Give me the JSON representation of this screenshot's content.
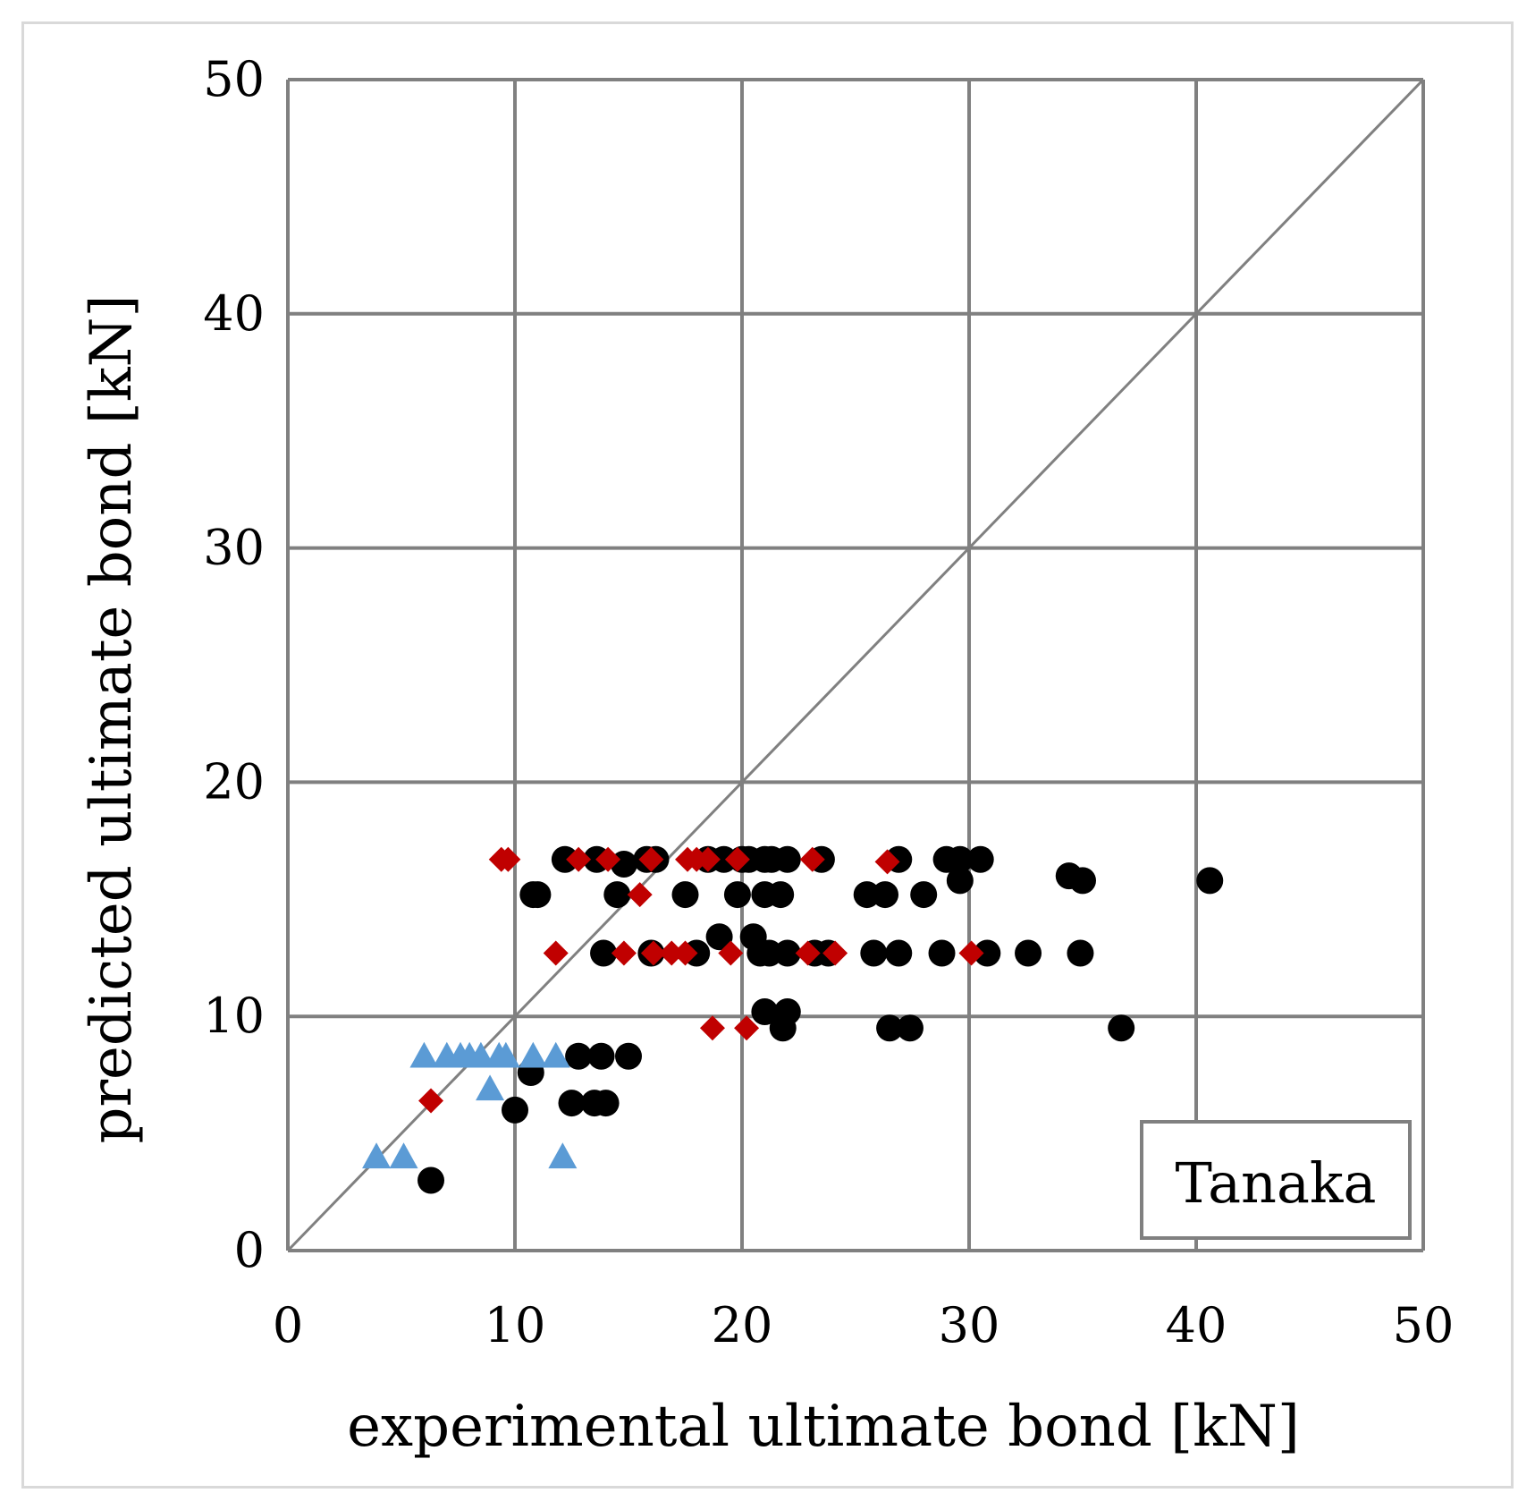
{
  "chart_data": {
    "type": "scatter",
    "title": "",
    "xlabel": "experimental ultimate bond [kN]",
    "ylabel": "predicted ultimate bond [kN]",
    "xlim": [
      0,
      50
    ],
    "ylim": [
      0,
      50
    ],
    "xticks": [
      0,
      10,
      20,
      30,
      40,
      50
    ],
    "yticks": [
      0,
      10,
      20,
      30,
      40,
      50
    ],
    "grid": true,
    "annotation": "Tanaka",
    "reference_line": {
      "name": "y = x",
      "from": [
        0,
        0
      ],
      "to": [
        50,
        50
      ],
      "color": "#808080"
    },
    "series": [
      {
        "name": "circles",
        "marker": "circle",
        "color": "#000000",
        "points": [
          [
            6.3,
            3.0
          ],
          [
            10.0,
            6.0
          ],
          [
            10.7,
            7.6
          ],
          [
            12.5,
            6.3
          ],
          [
            13.5,
            6.3
          ],
          [
            14.0,
            6.3
          ],
          [
            12.8,
            8.3
          ],
          [
            13.8,
            8.3
          ],
          [
            15.0,
            8.3
          ],
          [
            11.0,
            15.2
          ],
          [
            10.8,
            15.2
          ],
          [
            12.2,
            16.7
          ],
          [
            13.6,
            16.7
          ],
          [
            14.5,
            15.2
          ],
          [
            14.8,
            16.5
          ],
          [
            15.8,
            16.7
          ],
          [
            16.2,
            16.7
          ],
          [
            17.5,
            15.2
          ],
          [
            18.5,
            16.7
          ],
          [
            19.2,
            16.7
          ],
          [
            20.0,
            16.7
          ],
          [
            20.3,
            16.7
          ],
          [
            21.0,
            16.7
          ],
          [
            21.3,
            16.7
          ],
          [
            22.0,
            16.7
          ],
          [
            23.5,
            16.7
          ],
          [
            19.8,
            15.2
          ],
          [
            21.0,
            15.2
          ],
          [
            21.7,
            15.2
          ],
          [
            13.9,
            12.7
          ],
          [
            16.0,
            12.7
          ],
          [
            18.0,
            12.7
          ],
          [
            19.0,
            13.4
          ],
          [
            20.5,
            13.4
          ],
          [
            20.8,
            12.7
          ],
          [
            21.2,
            12.7
          ],
          [
            22.0,
            12.7
          ],
          [
            23.2,
            12.7
          ],
          [
            23.8,
            12.7
          ],
          [
            21.0,
            10.2
          ],
          [
            22.0,
            10.2
          ],
          [
            21.8,
            9.5
          ],
          [
            25.5,
            15.2
          ],
          [
            26.3,
            15.2
          ],
          [
            26.9,
            16.7
          ],
          [
            28.0,
            15.2
          ],
          [
            29.0,
            16.7
          ],
          [
            29.6,
            16.7
          ],
          [
            29.6,
            15.8
          ],
          [
            30.5,
            16.7
          ],
          [
            25.8,
            12.7
          ],
          [
            26.9,
            12.7
          ],
          [
            28.8,
            12.7
          ],
          [
            30.8,
            12.7
          ],
          [
            32.6,
            12.7
          ],
          [
            26.5,
            9.5
          ],
          [
            27.4,
            9.5
          ],
          [
            34.4,
            16.0
          ],
          [
            35.0,
            15.8
          ],
          [
            34.9,
            12.7
          ],
          [
            36.7,
            9.5
          ],
          [
            40.6,
            15.8
          ]
        ]
      },
      {
        "name": "diamonds",
        "marker": "diamond",
        "color": "#c00000",
        "points": [
          [
            6.3,
            6.4
          ],
          [
            9.4,
            16.7
          ],
          [
            9.7,
            16.7
          ],
          [
            12.8,
            16.7
          ],
          [
            14.1,
            16.7
          ],
          [
            15.5,
            15.2
          ],
          [
            16.0,
            16.7
          ],
          [
            17.6,
            16.7
          ],
          [
            18.0,
            16.7
          ],
          [
            18.5,
            16.7
          ],
          [
            19.8,
            16.7
          ],
          [
            23.1,
            16.7
          ],
          [
            26.4,
            16.6
          ],
          [
            11.8,
            12.7
          ],
          [
            14.8,
            12.7
          ],
          [
            16.1,
            12.7
          ],
          [
            16.9,
            12.7
          ],
          [
            17.5,
            12.7
          ],
          [
            19.5,
            12.7
          ],
          [
            22.9,
            12.7
          ],
          [
            24.1,
            12.7
          ],
          [
            30.1,
            12.7
          ],
          [
            18.7,
            9.5
          ],
          [
            20.2,
            9.5
          ]
        ]
      },
      {
        "name": "triangles",
        "marker": "triangle",
        "color": "#5b9bd5",
        "points": [
          [
            3.9,
            4.0
          ],
          [
            5.1,
            4.0
          ],
          [
            6.0,
            8.3
          ],
          [
            7.0,
            8.3
          ],
          [
            7.6,
            8.3
          ],
          [
            8.0,
            8.3
          ],
          [
            8.5,
            8.3
          ],
          [
            9.3,
            8.3
          ],
          [
            9.6,
            8.3
          ],
          [
            8.9,
            6.9
          ],
          [
            10.8,
            8.3
          ],
          [
            11.8,
            8.3
          ],
          [
            12.1,
            4.0
          ]
        ]
      }
    ]
  }
}
